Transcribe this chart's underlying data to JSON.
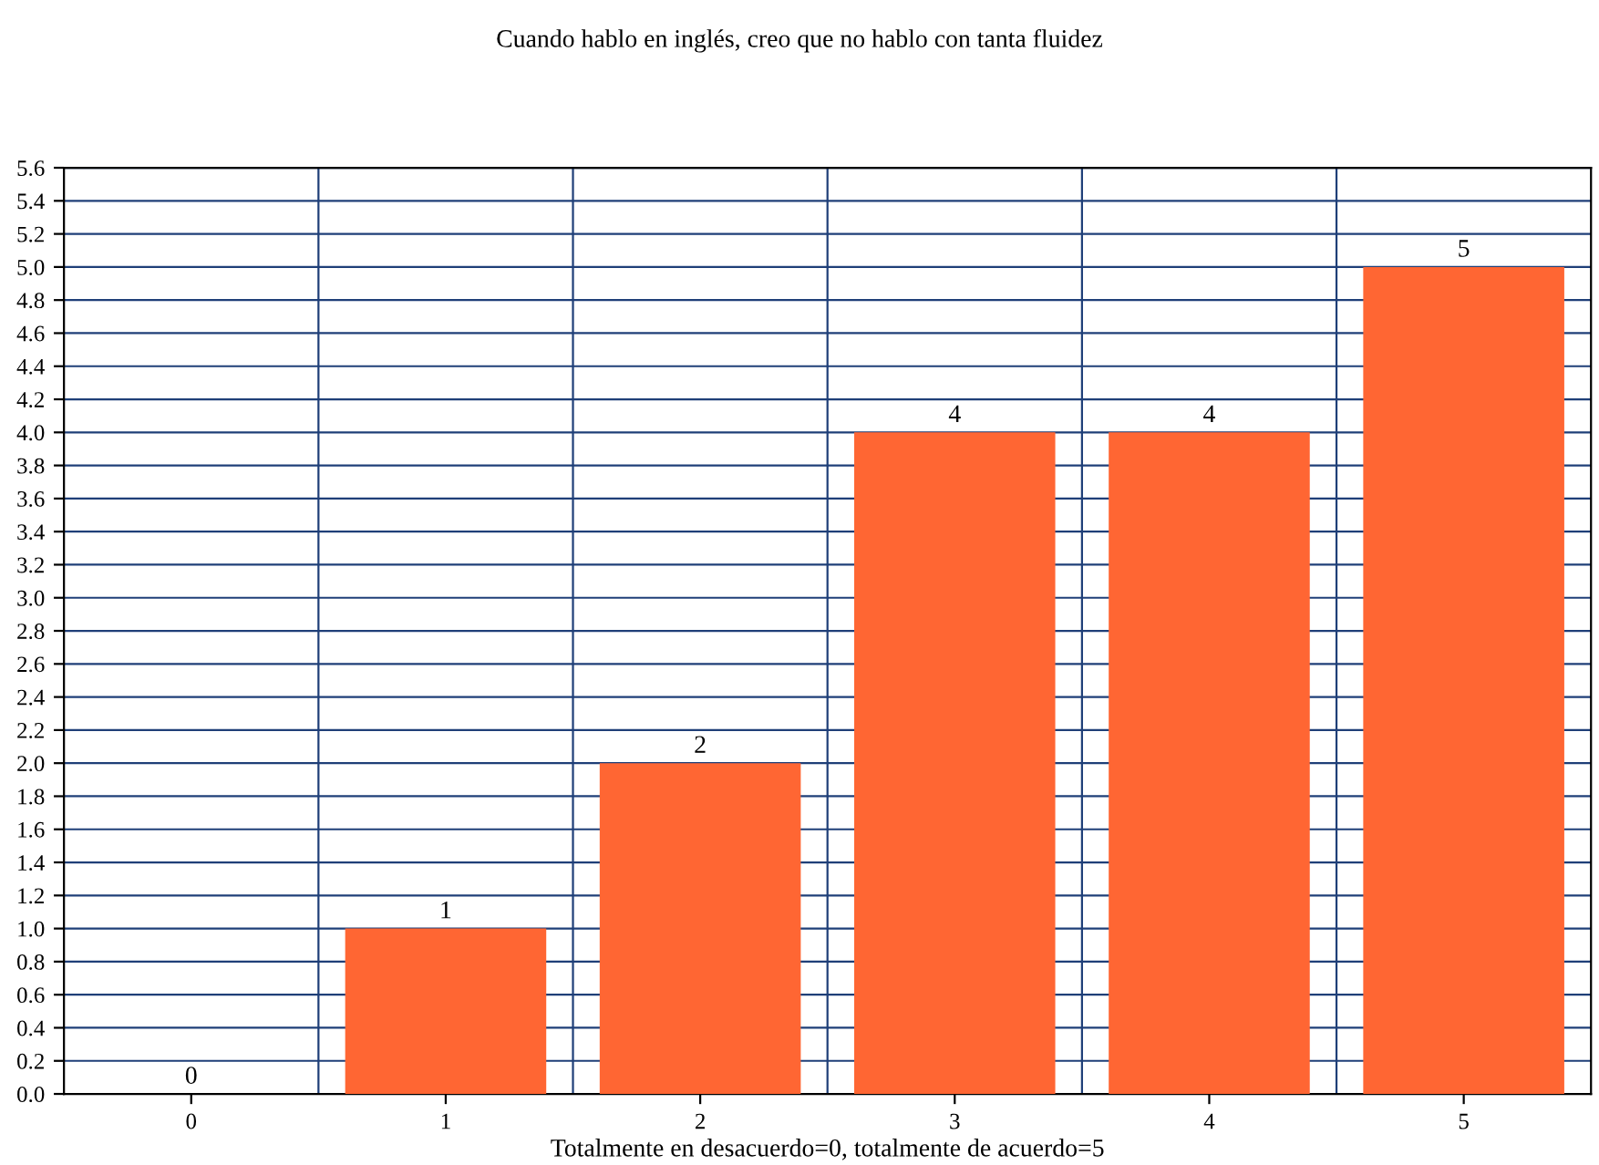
{
  "chart_data": {
    "type": "bar",
    "title": "Cuando hablo en inglés, creo que no hablo con tanta fluidez",
    "xlabel": "Totalmente en desacuerdo=0, totalmente de acuerdo=5",
    "categories": [
      "0",
      "1",
      "2",
      "3",
      "4",
      "5"
    ],
    "values": [
      0,
      1,
      2,
      4,
      4,
      5
    ],
    "color": "#ff6633",
    "ylim": [
      0,
      5.6
    ],
    "yticks": [
      {
        "value": 0,
        "label": "0.0"
      },
      0.2,
      0.4,
      0.6,
      0.8,
      {
        "value": 1,
        "label": "1.0"
      },
      1.2,
      1.4,
      1.6,
      1.8,
      {
        "value": 2,
        "label": "2.0"
      },
      2.2,
      2.4,
      2.6,
      2.8,
      {
        "value": 3,
        "label": "3.0"
      },
      3.2,
      3.4,
      3.6,
      3.8,
      {
        "value": 4,
        "label": "4.0"
      },
      4.2,
      4.4,
      4.6,
      4.8,
      {
        "value": 5,
        "label": "5.0"
      },
      5.2,
      5.4,
      5.6
    ],
    "grid": true,
    "data_labels": true
  }
}
